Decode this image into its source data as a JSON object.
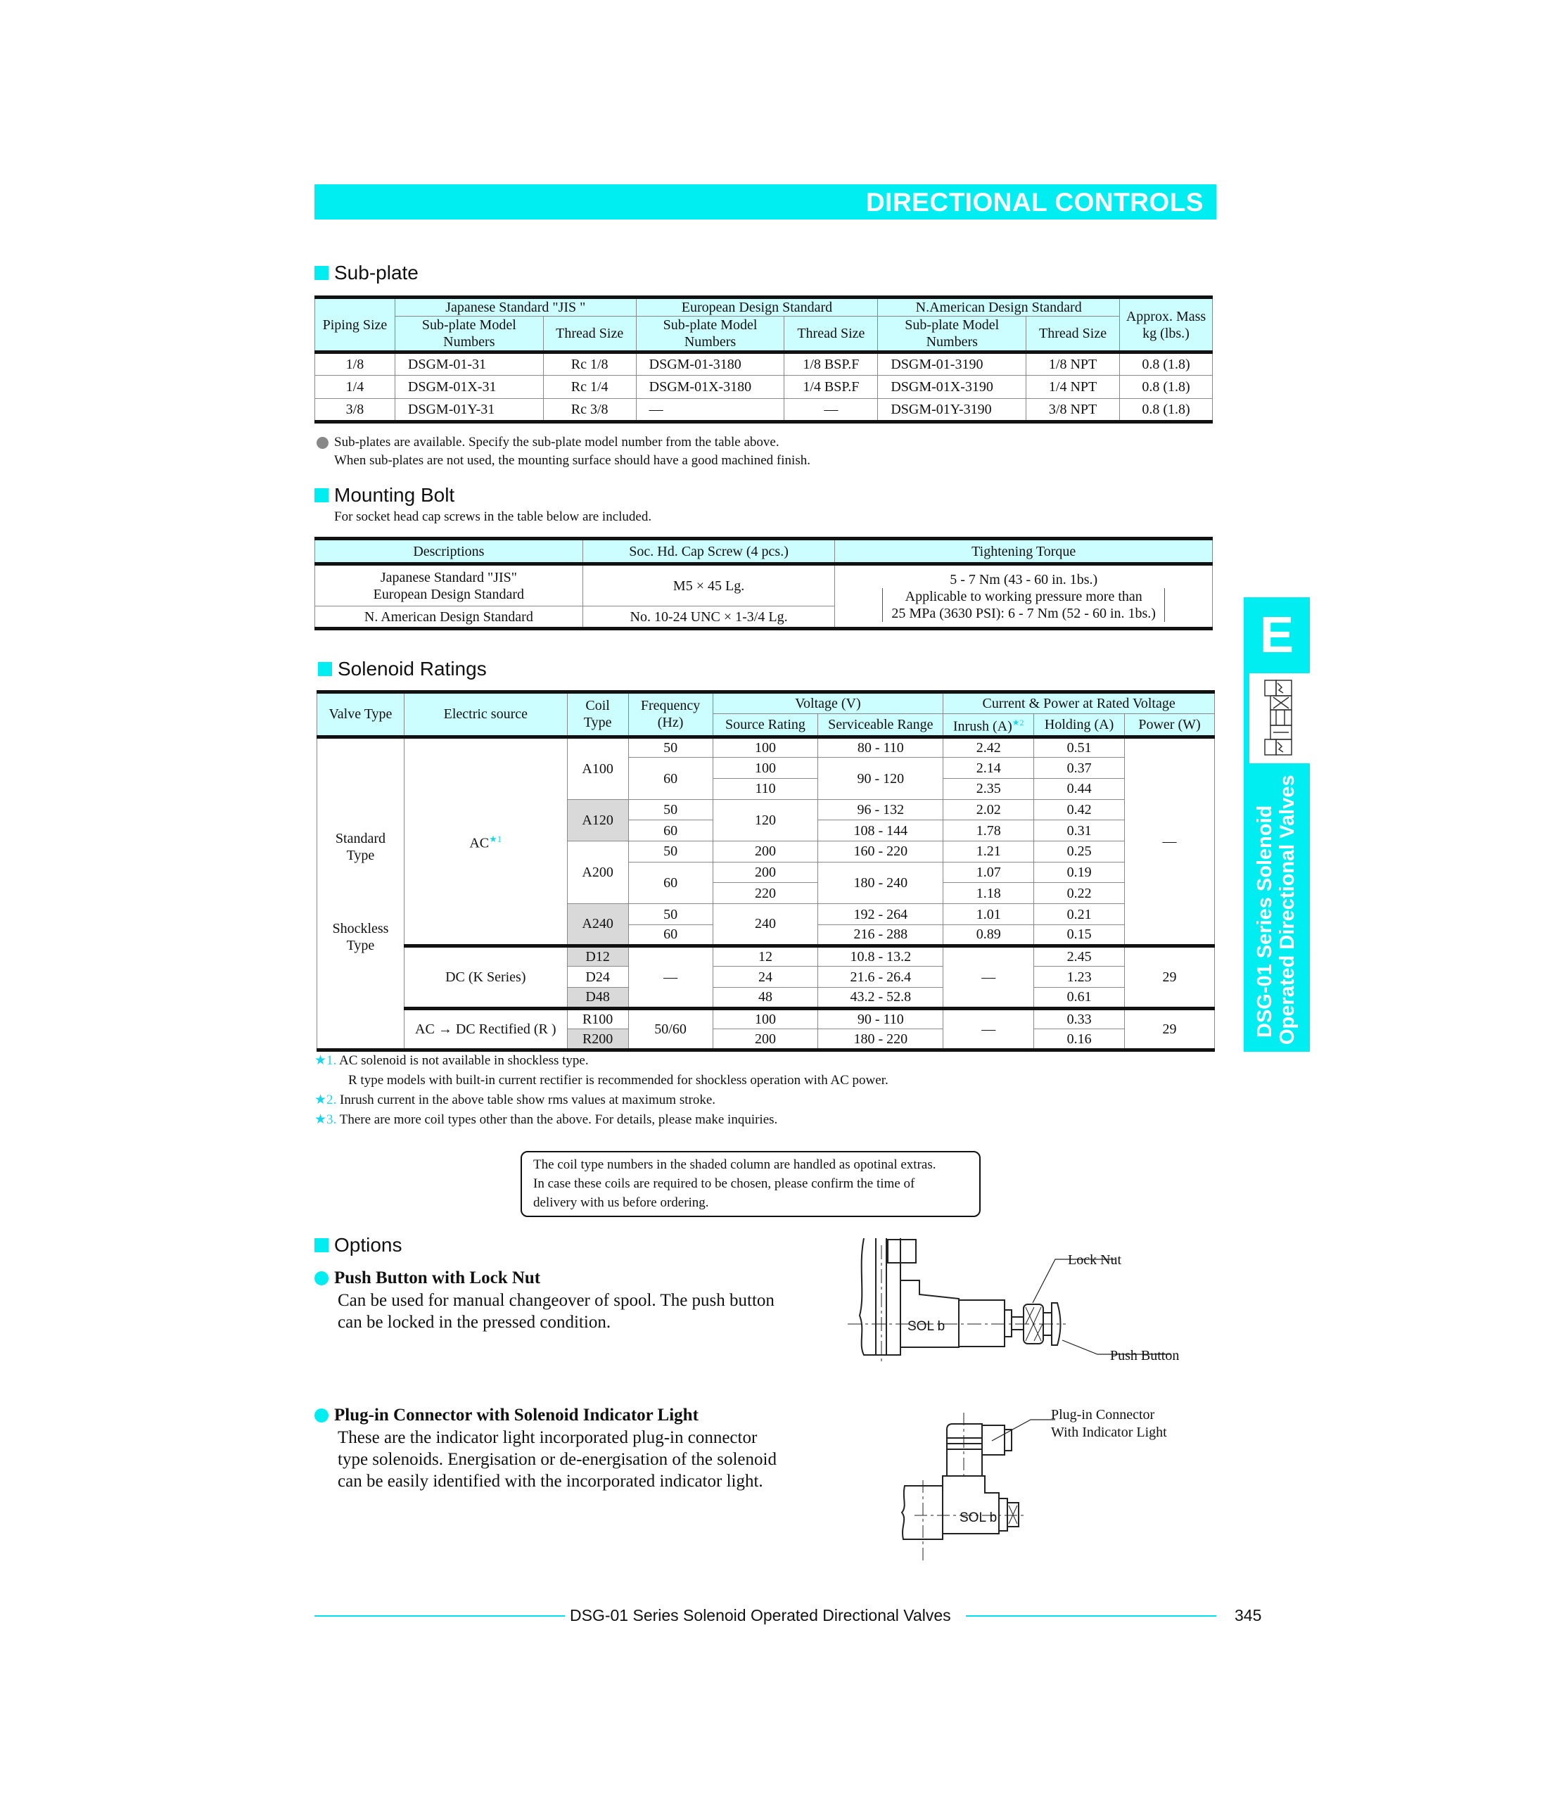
{
  "header": {
    "title": "DIRECTIONAL CONTROLS"
  },
  "side_tab": {
    "letter": "E",
    "line1": "DSG-01 Series Solenoid",
    "line2": "Operated Directional Valves",
    "icon": "valve-symbol-icon"
  },
  "colors": {
    "accent": "#00eef2",
    "table_header": "#ccfdff",
    "shaded": "#d9d9d9"
  },
  "subplate": {
    "heading": "Sub-plate",
    "headers": {
      "piping": "Piping Size",
      "jis": "Japanese Standard \"JIS \"",
      "eu": "European Design Standard",
      "na": "N.American Design Standard",
      "mass": "Approx. Mass kg (lbs.)",
      "model": "Sub-plate Model Numbers",
      "thread": "Thread Size"
    },
    "rows": [
      [
        "1/8",
        "DSGM-01-31",
        "Rc 1/8",
        "DSGM-01-3180",
        "1/8 BSP.F",
        "DSGM-01-3190",
        "1/8 NPT",
        "0.8 (1.8)"
      ],
      [
        "1/4",
        "DSGM-01X-31",
        "Rc 1/4",
        "DSGM-01X-3180",
        "1/4 BSP.F",
        "DSGM-01X-3190",
        "1/4 NPT",
        "0.8 (1.8)"
      ],
      [
        "3/8",
        "DSGM-01Y-31",
        "Rc 3/8",
        "—",
        "—",
        "DSGM-01Y-3190",
        "3/8 NPT",
        "0.8 (1.8)"
      ]
    ],
    "note1": "Sub-plates are available.  Specify the sub-plate model number from the table above.",
    "note2": "When sub-plates are not used, the mounting surface should have a good machined finish."
  },
  "bolt": {
    "heading": "Mounting Bolt",
    "intro": "For socket head cap screws in the table below are included.",
    "headers": [
      "Descriptions",
      "Soc. Hd. Cap Screw (4 pcs.)",
      "Tightening Torque"
    ],
    "row1_desc1": "Japanese Standard \"JIS\"",
    "row1_desc2": "European Design Standard",
    "row1_screw": "M5 × 45 Lg.",
    "row2_desc": "N. American Design Standard",
    "row2_screw": "No. 10-24 UNC × 1-3/4 Lg.",
    "torque1": "5 - 7 Nm (43 - 60 in. 1bs.)",
    "torque2": "Applicable to working pressure more than",
    "torque3": "25 MPa (3630 PSI): 6 - 7 Nm (52 - 60 in. 1bs.)"
  },
  "solenoid": {
    "heading": "Solenoid Ratings",
    "headers": {
      "valve_type": "Valve Type",
      "source": "Electric source",
      "coil": "Coil Type",
      "freq": "Frequency (Hz)",
      "voltage": "Voltage (V)",
      "current": "Current & Power at Rated Voltage",
      "rating": "Source Rating",
      "range": "Serviceable Range",
      "inrush": "Inrush (A)",
      "inrush_star": "★2",
      "holding": "Holding (A)",
      "power": "Power (W)"
    },
    "valve_type_1": "Standard Type",
    "valve_type_2": "Shockless Type",
    "groups": [
      {
        "source": "AC",
        "star": "★1",
        "power": "—",
        "coils": [
          {
            "coil": "A100",
            "shaded": false,
            "freqs": [
              {
                "hz": "50",
                "rows": [
                  {
                    "rating": "100",
                    "range": "80  -  110",
                    "inrush": "2.42",
                    "holding": "0.51"
                  }
                ]
              },
              {
                "hz": "60",
                "range": "90  -  120",
                "rows": [
                  {
                    "rating": "100",
                    "inrush": "2.14",
                    "holding": "0.37"
                  },
                  {
                    "rating": "110",
                    "inrush": "2.35",
                    "holding": "0.44"
                  }
                ]
              }
            ]
          },
          {
            "coil": "A120",
            "shaded": true,
            "rating": "120",
            "freqs": [
              {
                "hz": "50",
                "rows": [
                  {
                    "range": "96  -  132",
                    "inrush": "2.02",
                    "holding": "0.42"
                  }
                ]
              },
              {
                "hz": "60",
                "rows": [
                  {
                    "range": "108  -  144",
                    "inrush": "1.78",
                    "holding": "0.31"
                  }
                ]
              }
            ]
          },
          {
            "coil": "A200",
            "shaded": false,
            "freqs": [
              {
                "hz": "50",
                "rows": [
                  {
                    "rating": "200",
                    "range": "160  -  220",
                    "inrush": "1.21",
                    "holding": "0.25"
                  }
                ]
              },
              {
                "hz": "60",
                "range": "180  -  240",
                "rows": [
                  {
                    "rating": "200",
                    "inrush": "1.07",
                    "holding": "0.19"
                  },
                  {
                    "rating": "220",
                    "inrush": "1.18",
                    "holding": "0.22"
                  }
                ]
              }
            ]
          },
          {
            "coil": "A240",
            "shaded": true,
            "rating": "240",
            "freqs": [
              {
                "hz": "50",
                "rows": [
                  {
                    "range": "192  -  264",
                    "inrush": "1.01",
                    "holding": "0.21"
                  }
                ]
              },
              {
                "hz": "60",
                "rows": [
                  {
                    "range": "216  -  288",
                    "inrush": "0.89",
                    "holding": "0.15"
                  }
                ]
              }
            ]
          }
        ]
      },
      {
        "source": "DC (K Series)",
        "frequency": "—",
        "inrush": "—",
        "power": "29",
        "coils": [
          {
            "coil": "D12",
            "shaded": true,
            "rating": "12",
            "range": "10.8  -  13.2",
            "holding": "2.45"
          },
          {
            "coil": "D24",
            "shaded": false,
            "rating": "24",
            "range": "21.6  -  26.4",
            "holding": "1.23"
          },
          {
            "coil": "D48",
            "shaded": true,
            "rating": "48",
            "range": "43.2  -  52.8",
            "holding": "0.61"
          }
        ]
      },
      {
        "source": "AC → DC Rectified (R )",
        "frequency": "50/60",
        "inrush": "—",
        "power": "29",
        "coils": [
          {
            "coil": "R100",
            "shaded": false,
            "rating": "100",
            "range": "90  -  110",
            "holding": "0.33"
          },
          {
            "coil": "R200",
            "shaded": true,
            "rating": "200",
            "range": "180  -  220",
            "holding": "0.16"
          }
        ]
      }
    ],
    "footnotes": [
      {
        "mark": "★1.",
        "text": "AC solenoid is not available in shockless type.",
        "text2": "R type models with built-in current rectifier is recommended for shockless operation with AC power."
      },
      {
        "mark": "★2.",
        "text": "Inrush current in the above table show rms values at maximum stroke."
      },
      {
        "mark": "★3.",
        "text": "There are more coil types other than the above.  For details, please make inquiries."
      }
    ],
    "notice": [
      "The coil type numbers in the shaded column are handled as opotinal extras.",
      "In case these coils are required to be chosen, please confirm the time of",
      "delivery with us before ordering."
    ]
  },
  "options": {
    "heading": "Options",
    "items": [
      {
        "title": "Push Button with Lock Nut",
        "lines": [
          "Can be used for manual changeover of spool.  The push button",
          "can be locked in the pressed condition."
        ],
        "labels": {
          "sol": "SOL b",
          "a": "Lock Nut",
          "b": "Push Button"
        }
      },
      {
        "title": "Plug-in Connector with Solenoid Indicator Light",
        "lines": [
          "These are the indicator light incorporated plug-in connector",
          "type solenoids.  Energisation or de-energisation of the solenoid",
          "can be easily identified with the incorporated indicator light."
        ],
        "labels": {
          "sol": "SOL b",
          "a": "Plug-in  Connector",
          "b": "With Indicator Light"
        }
      }
    ]
  },
  "footer": {
    "title": "DSG-01 Series Solenoid Operated Directional Valves",
    "page": "345"
  }
}
